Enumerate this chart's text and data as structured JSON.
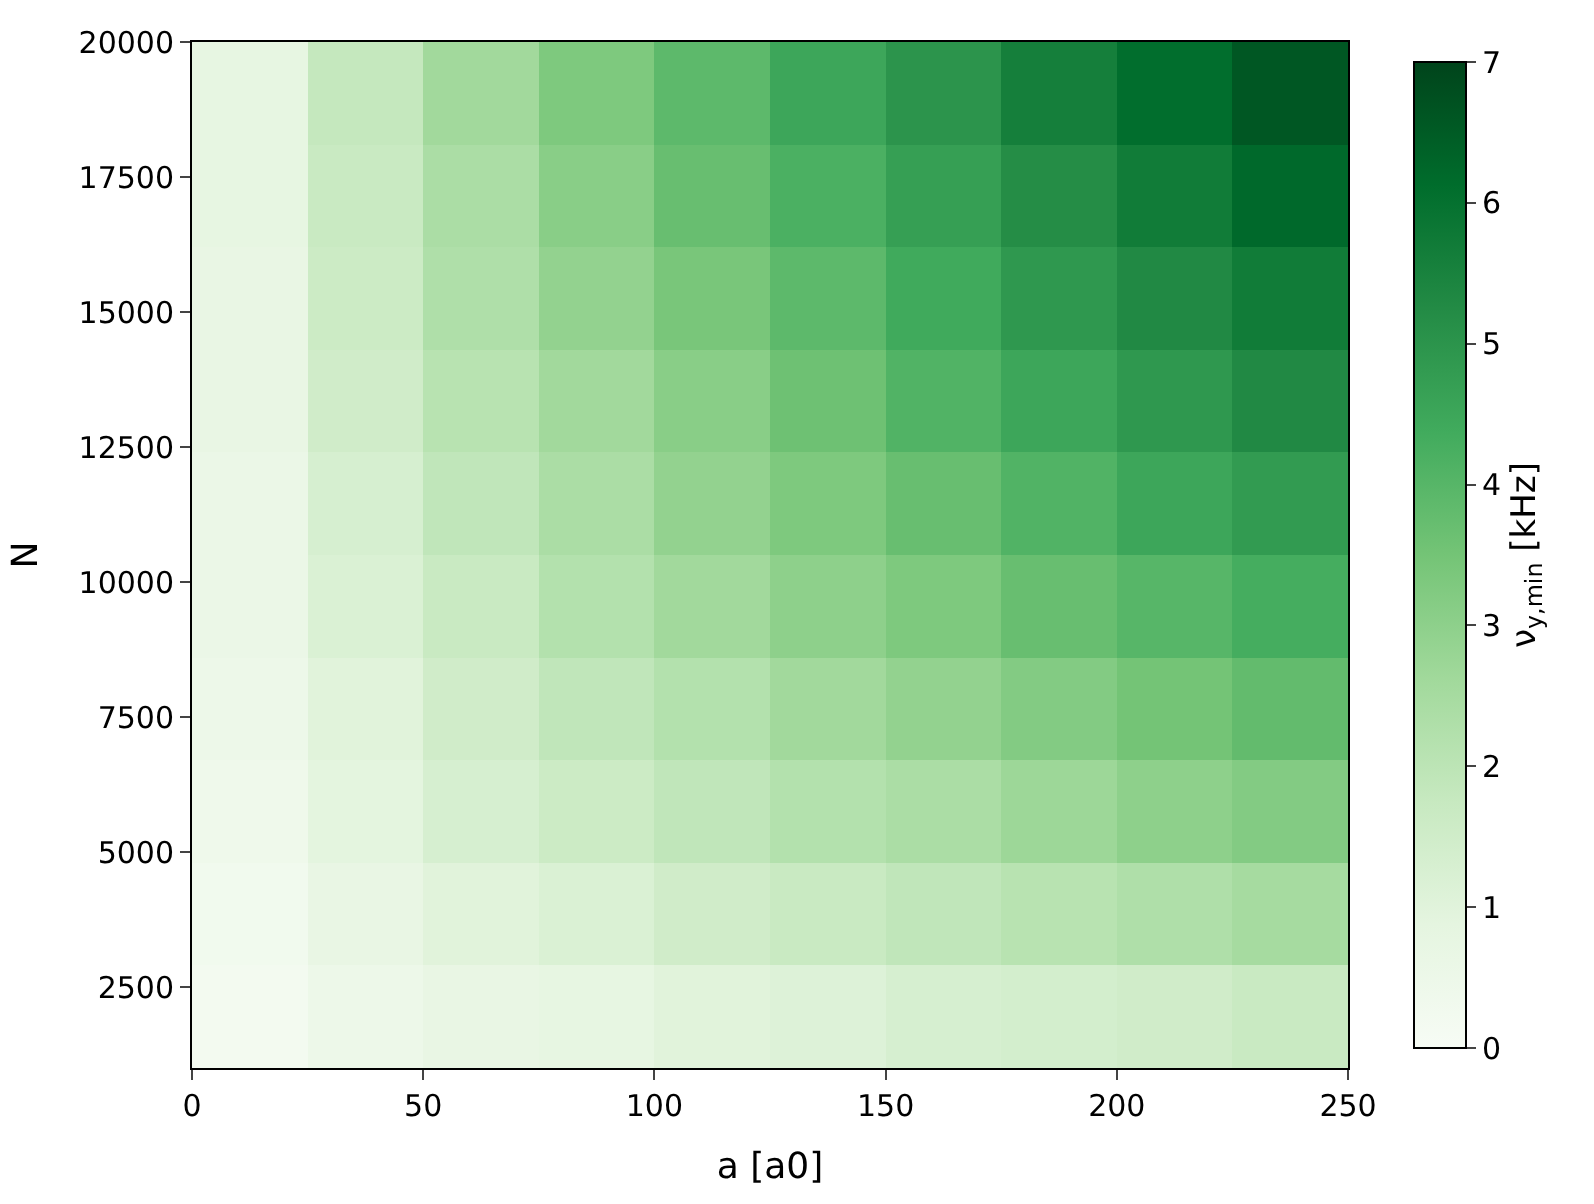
{
  "chart_data": {
    "type": "heatmap",
    "xlabel": "a [a0]",
    "ylabel": "N",
    "clabel": "ν$_{y,min}$ [kHz]",
    "x": [
      12.5,
      37.5,
      62.5,
      87.5,
      112.5,
      137.5,
      162.5,
      187.5,
      212.5,
      237.5
    ],
    "y": [
      19050,
      17150,
      15250,
      13350,
      11450,
      9550,
      7650,
      5750,
      3850,
      1950
    ],
    "cells": [
      [
        0.8,
        1.8,
        2.6,
        3.3,
        3.9,
        4.5,
        5.0,
        5.6,
        6.1,
        6.6
      ],
      [
        0.8,
        1.7,
        2.4,
        3.1,
        3.7,
        4.2,
        4.7,
        5.2,
        5.7,
        6.2
      ],
      [
        0.7,
        1.6,
        2.3,
        2.9,
        3.4,
        3.9,
        4.4,
        4.9,
        5.3,
        5.7
      ],
      [
        0.7,
        1.5,
        2.1,
        2.6,
        3.1,
        3.6,
        4.1,
        4.5,
        4.9,
        5.3
      ],
      [
        0.6,
        1.3,
        1.9,
        2.4,
        2.9,
        3.3,
        3.7,
        4.1,
        4.5,
        4.8
      ],
      [
        0.6,
        1.2,
        1.7,
        2.2,
        2.6,
        3.0,
        3.3,
        3.7,
        4.0,
        4.3
      ],
      [
        0.5,
        1.0,
        1.5,
        1.9,
        2.2,
        2.6,
        2.9,
        3.2,
        3.5,
        3.8
      ],
      [
        0.4,
        0.9,
        1.3,
        1.6,
        1.9,
        2.2,
        2.4,
        2.7,
        3.0,
        3.2
      ],
      [
        0.3,
        0.7,
        1.0,
        1.2,
        1.5,
        1.7,
        1.9,
        2.1,
        2.3,
        2.5
      ],
      [
        0.2,
        0.5,
        0.7,
        0.8,
        1.0,
        1.1,
        1.3,
        1.4,
        1.5,
        1.7
      ]
    ],
    "xlim": [
      0,
      250
    ],
    "xticks": [
      0,
      50,
      100,
      150,
      200,
      250
    ],
    "ylim": [
      1000,
      20000
    ],
    "yticks": [
      2500,
      5000,
      7500,
      10000,
      12500,
      15000,
      17500,
      20000
    ],
    "clim": [
      0,
      7
    ],
    "cticks": [
      0,
      1,
      2,
      3,
      4,
      5,
      6,
      7
    ]
  }
}
